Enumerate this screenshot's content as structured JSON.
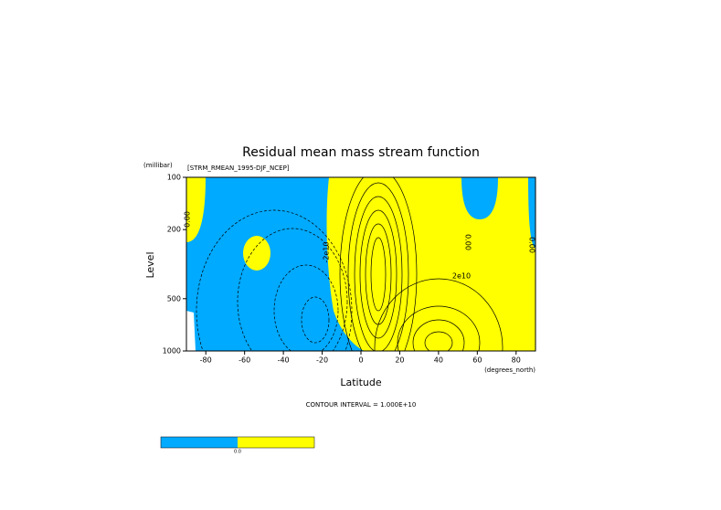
{
  "chart_data": {
    "type": "contour",
    "title": "Residual mean mass stream function",
    "subtitle": "[STRM_RMEAN_1995-DJF_NCEP]",
    "x_label": "Latitude",
    "x_unit": "(degrees_north)",
    "y_label": "Level",
    "y_unit": "(millibar)",
    "note": "CONTOUR INTERVAL = 1.000E+10",
    "xlim": [
      -90,
      90
    ],
    "xticks": [
      -80,
      -60,
      -40,
      -20,
      0,
      20,
      40,
      60,
      80
    ],
    "ylim": [
      1000,
      100
    ],
    "yticks": [
      100,
      200,
      500,
      1000
    ],
    "yscale": "log",
    "negative_color": "#00aaff",
    "positive_color": "#ffff00",
    "contour_labels": [
      "0.00",
      "-2e10",
      "2e10",
      "0.00",
      "0.00"
    ],
    "colorbar_label": "0.0"
  }
}
